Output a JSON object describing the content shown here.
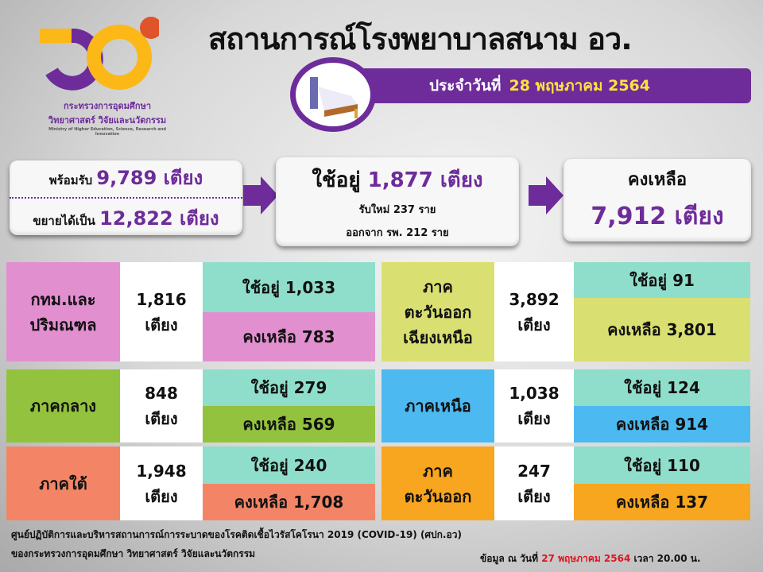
{
  "logo": {
    "org_th_1": "กระทรวงการอุดมศึกษา",
    "org_th_2": "วิทยาศาสตร์ วิจัยและนวัตกรรม",
    "org_en": "Ministry of Higher Education, Science, Research and Innovation"
  },
  "title": "สถานการณ์โรงพยาบาลสนาม อว.",
  "date": {
    "label": "ประจำวันที่",
    "value": "28 พฤษภาคม 2564"
  },
  "summary": {
    "ready_label": "พร้อมรับ",
    "ready_value": "9,789 เตียง",
    "expand_label": "ขยายได้เป็น",
    "expand_value": "12,822 เตียง",
    "used_label": "ใช้อยู่",
    "used_value": "1,877 เตียง",
    "new_admit": "รับใหม่  237  ราย",
    "discharged": "ออกจาก รพ. 212 ราย",
    "remain_label": "คงเหลือ",
    "remain_value": "7,912 เตียง"
  },
  "colors": {
    "purple": "#6e2c9a",
    "yellow": "#ffe23d",
    "teal": "#8fdecb",
    "date_red": "#e0141e"
  },
  "regions": [
    {
      "name": "กทม.และ\nปริมณฑล",
      "total": "1,816\nเตียง",
      "used": "ใช้อยู่  1,033",
      "remain": "คงเหลือ 783",
      "color": "#e28fd0"
    },
    {
      "name": "ภาค\nตะวันออก\nเฉียงเหนือ",
      "total": "3,892\nเตียง",
      "used": "ใช้อยู่   91",
      "remain": "คงเหลือ  3,801",
      "color": "#d9df70"
    },
    {
      "name": "ภาคกลาง",
      "total": "848\nเตียง",
      "used": "ใช้อยู่  279",
      "remain": "คงเหลือ  569",
      "color": "#93c23e"
    },
    {
      "name": "ภาคเหนือ",
      "total": "1,038\nเตียง",
      "used": "ใช้อยู่  124",
      "remain": "คงเหลือ  914",
      "color": "#4cb9f0"
    },
    {
      "name": "ภาคใต้",
      "total": "1,948\nเตียง",
      "used": "ใช้อยู่ 240",
      "remain": "คงเหลือ 1,708",
      "color": "#f38566"
    },
    {
      "name": "ภาค\nตะวันออก",
      "total": "247\nเตียง",
      "used": "ใช้อยู่  110",
      "remain": "คงเหลือ 137",
      "color": "#f8a51f"
    }
  ],
  "footer": {
    "line1": "ศูนย์ปฏิบัติการและบริหารสถานการณ์การระบาดของโรคติดเชื้อไวรัสโคโรนา  2019 (COVID-19) (ศปก.อว)",
    "line2": "ของกระทรวงการอุดมศึกษา  วิทยาศาสตร์ วิจัยและนวัตกรรม",
    "data_label": "ข้อมูล ณ วันที่",
    "data_date": "27 พฤษภาคม 2564",
    "time_label": "เวลา  20.00 น."
  }
}
